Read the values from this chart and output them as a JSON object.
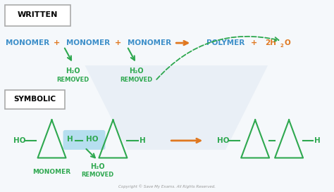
{
  "bg_color": "#f5f8fb",
  "written_box_text": "WRITTEN",
  "symbolic_box_text": "SYMBOLIC",
  "monomer_color": "#3d8fc9",
  "green_color": "#2ea84f",
  "orange_color": "#e07820",
  "copyright": "Copyright © Save My Exams. All Rights Reserved.",
  "watermark_color": "#c8d8e8"
}
